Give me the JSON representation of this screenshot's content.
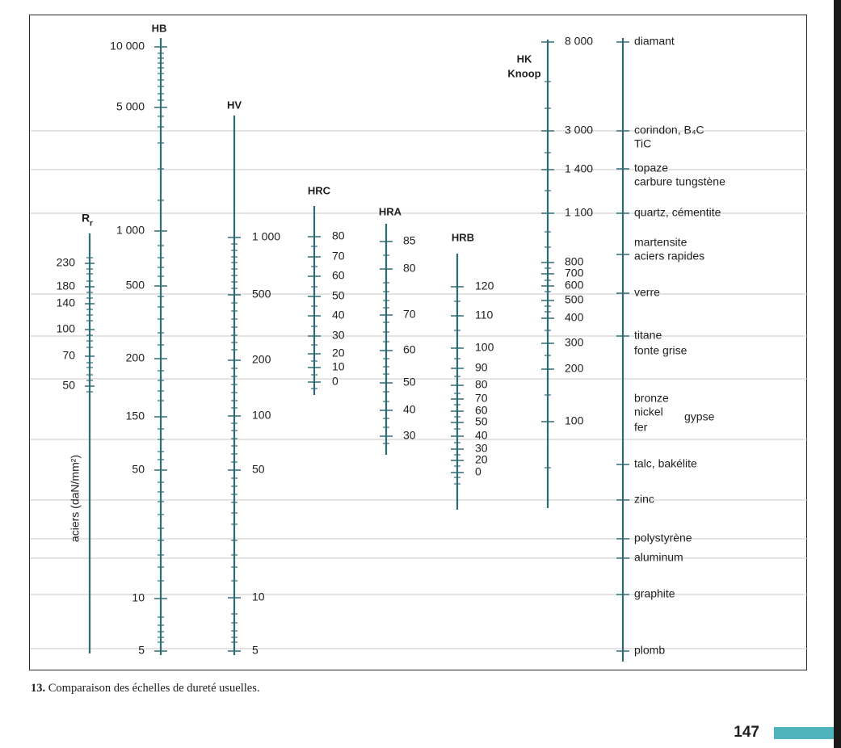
{
  "colors": {
    "scale_line": "#2e6c74",
    "grid_line": "#c9c9c9",
    "text": "#1e1e1e",
    "accent": "#4fb4bc",
    "edge": "#1a1a1a"
  },
  "caption": {
    "number": "13.",
    "text": "Comparaison des échelles de dureté usuelles."
  },
  "page_number": "147",
  "chart_data": {
    "type": "nomogram",
    "scales": [
      {
        "id": "rr",
        "title": "R",
        "subscript": "r",
        "side_label": "aciers (daN/mm²)",
        "labels": [
          "230",
          "180",
          "140",
          "100",
          "70",
          "50"
        ]
      },
      {
        "id": "hb",
        "title": "HB",
        "labels": [
          "10 000",
          "5 000",
          "1 000",
          "500",
          "200",
          "150",
          "50",
          "10",
          "5"
        ]
      },
      {
        "id": "hv",
        "title": "HV",
        "labels": [
          "1 000",
          "500",
          "200",
          "100",
          "50",
          "10",
          "5"
        ]
      },
      {
        "id": "hrc",
        "title": "HRC",
        "labels": [
          "80",
          "70",
          "60",
          "50",
          "40",
          "30",
          "20",
          "10",
          "0"
        ]
      },
      {
        "id": "hra",
        "title": "HRA",
        "labels": [
          "85",
          "80",
          "70",
          "60",
          "50",
          "40",
          "30"
        ]
      },
      {
        "id": "hrb",
        "title": "HRB",
        "labels": [
          "120",
          "110",
          "100",
          "90",
          "80",
          "70",
          "60",
          "50",
          "40",
          "30",
          "20",
          "0"
        ]
      },
      {
        "id": "hk",
        "title": "HK",
        "title2": "Knoop",
        "labels": [
          "8 000",
          "3 000",
          "1 400",
          "1 100",
          "800",
          "700",
          "600",
          "500",
          "400",
          "300",
          "200",
          "100"
        ]
      }
    ],
    "materials": [
      "diamant",
      "corindon, B₄C",
      "TiC",
      "topaze",
      "carbure tungstène",
      "quartz, cémentite",
      "martensite",
      "aciers rapides",
      "verre",
      "titane",
      "fonte grise",
      "bronze",
      "nickel",
      "gypse",
      "fer",
      "talc, bakélite",
      "zinc",
      "polystyrène",
      "aluminum",
      "graphite",
      "plomb"
    ]
  }
}
